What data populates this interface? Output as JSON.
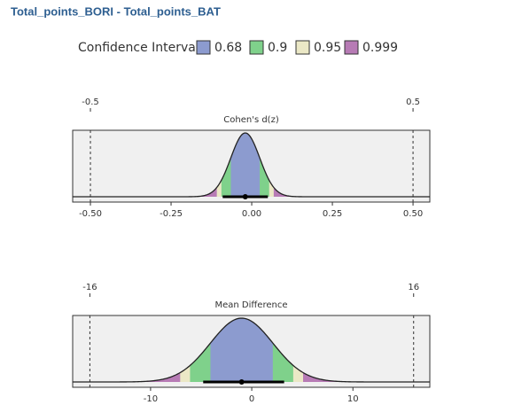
{
  "header": {
    "title": "Total_points_BORI - Total_points_BAT"
  },
  "legend": {
    "title": "Confidence Interval",
    "levels": [
      {
        "label": "0.68",
        "value": 0.68,
        "color": "#8c9bcf"
      },
      {
        "label": "0.9",
        "value": 0.9,
        "color": "#7fd18b"
      },
      {
        "label": "0.95",
        "value": 0.95,
        "color": "#ebe8c6"
      },
      {
        "label": "0.999",
        "value": 0.999,
        "color": "#b77bb5"
      }
    ]
  },
  "chart_data": [
    {
      "type": "density",
      "title": "Cohen's d(z)",
      "estimate": -0.02,
      "sd": 0.045,
      "interval": [
        -0.09,
        0.05
      ],
      "xlim": [
        -0.555,
        0.552
      ],
      "xticks": [
        {
          "value": -0.5,
          "label": "-0.50"
        },
        -0.25,
        {
          "value": 0,
          "label": "0.00"
        },
        0.25,
        {
          "value": 0.5,
          "label": "0.50"
        }
      ],
      "ref_lines": [
        -0.5,
        0.5
      ]
    },
    {
      "type": "density",
      "title": "Mean Difference",
      "estimate": -1,
      "sd": 3.1,
      "interval": [
        -4.8,
        3.2
      ],
      "xlim": [
        -17.7,
        17.6
      ],
      "xticks": [
        -10,
        0,
        10
      ],
      "ref_lines": [
        -16,
        16
      ]
    }
  ]
}
